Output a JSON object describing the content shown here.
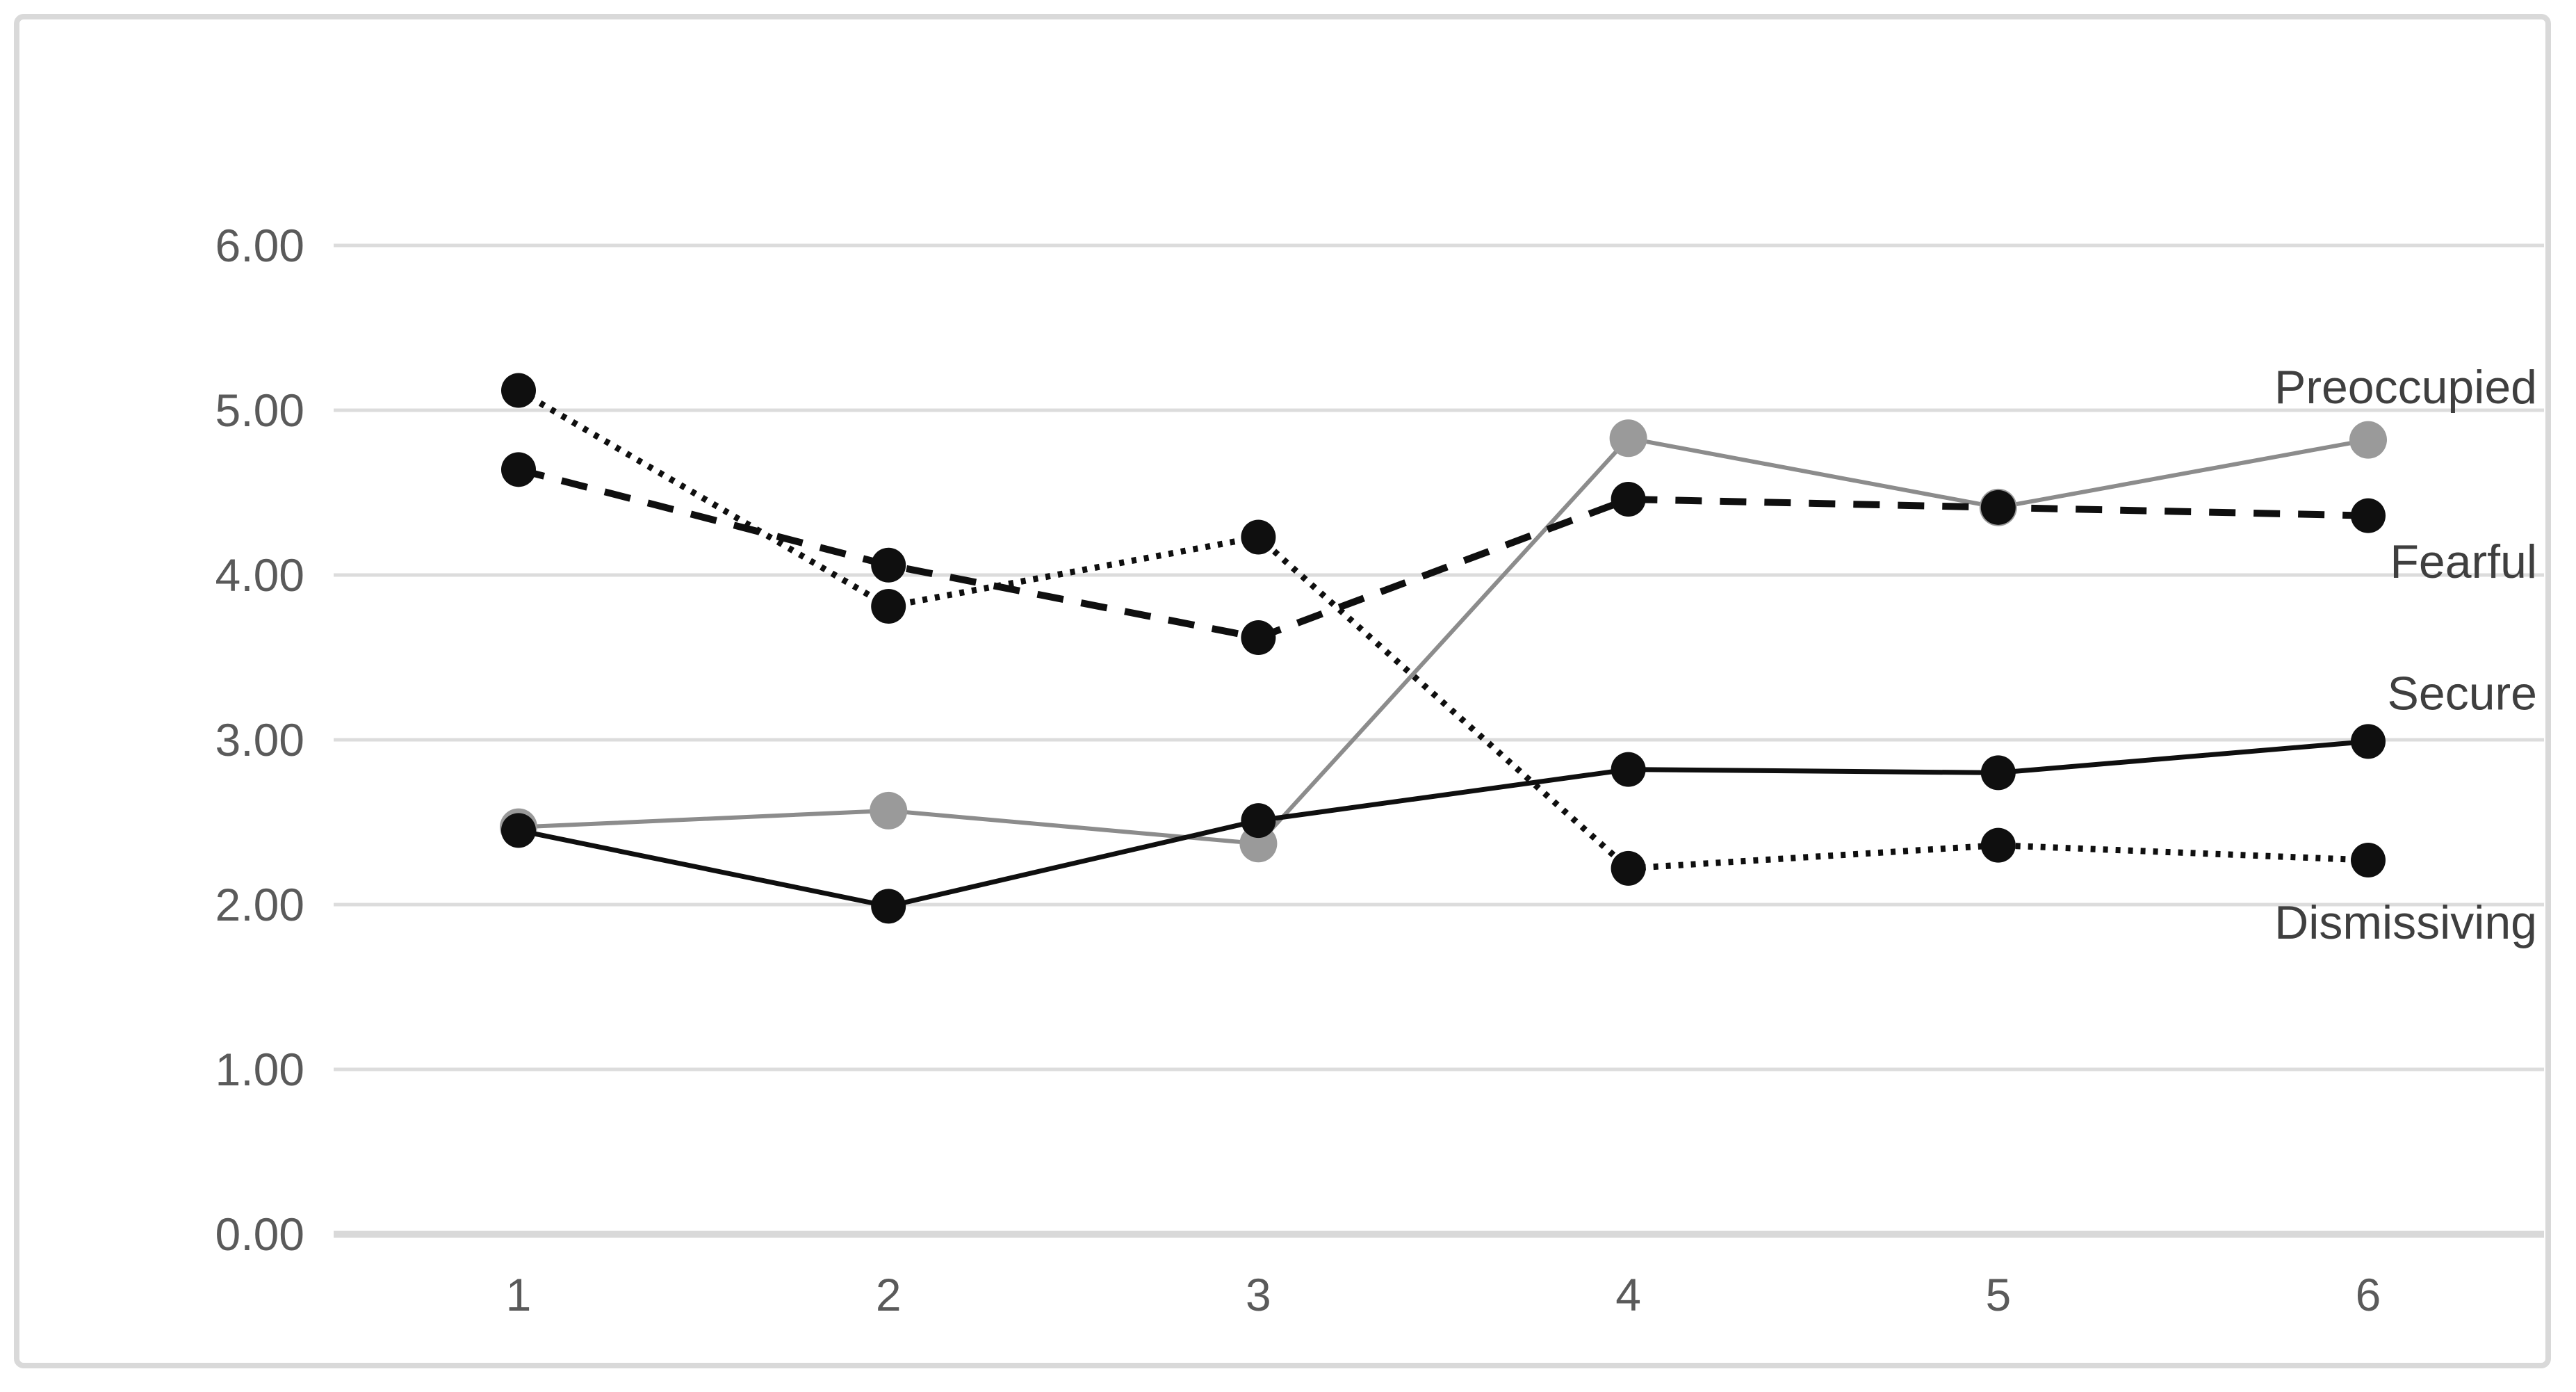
{
  "window": {
    "background_color": "#ffffff",
    "card_border_color": "#d9d9d9"
  },
  "chart_data": {
    "type": "line",
    "title": "",
    "xlabel": "",
    "ylabel": "",
    "x": [
      1,
      2,
      3,
      4,
      5,
      6
    ],
    "x_tick_labels": [
      "1",
      "2",
      "3",
      "4",
      "5",
      "6"
    ],
    "y_ticks": [
      {
        "value": 6,
        "label": "6.00"
      },
      {
        "value": 5,
        "label": "5.00"
      },
      {
        "value": 4,
        "label": "4.00"
      },
      {
        "value": 3,
        "label": "3.00"
      },
      {
        "value": 2,
        "label": "2.00"
      },
      {
        "value": 1,
        "label": "1.00"
      },
      {
        "value": 0,
        "label": "0.00"
      }
    ],
    "ylim": [
      0,
      6.8
    ],
    "grid": true,
    "grid_color": "#dcdcdc",
    "zero_line_color": "#d9d9d9",
    "tick_text_color": "#5a5a5a",
    "label_text_color": "#3f3f3f",
    "legend_position": "right-inline-labels",
    "draw_order": [
      "Preoccupied",
      "Dismissiving",
      "Fearful",
      "Secure"
    ],
    "series": [
      {
        "name": "Secure",
        "style": "solid",
        "color": "#0f0f0f",
        "marker_color": "#0f0f0f",
        "line_width": 7,
        "marker_radius": 25,
        "values": [
          2.45,
          1.99,
          2.51,
          2.82,
          2.8,
          2.99
        ],
        "label": {
          "text": "Secure",
          "y_value": 3.28
        }
      },
      {
        "name": "Fearful",
        "style": "dashed",
        "color": "#0f0f0f",
        "marker_color": "#0f0f0f",
        "line_width": 10,
        "marker_radius": 25,
        "values": [
          4.64,
          4.06,
          3.62,
          4.46,
          4.41,
          4.36
        ],
        "label": {
          "text": "Fearful",
          "y_value": 4.08
        }
      },
      {
        "name": "Preoccupied",
        "style": "solid",
        "color": "#8c8c8c",
        "marker_color": "#9a9a9a",
        "line_width": 6,
        "marker_radius": 27,
        "values": [
          2.47,
          2.57,
          2.37,
          4.83,
          4.41,
          4.82
        ],
        "label": {
          "text": "Preoccupied",
          "y_value": 5.14
        }
      },
      {
        "name": "Dismissiving",
        "style": "dotted",
        "color": "#0f0f0f",
        "marker_color": "#0f0f0f",
        "line_width": 9,
        "marker_radius": 25,
        "values": [
          5.12,
          3.81,
          4.23,
          2.22,
          2.36,
          2.27
        ],
        "label": {
          "text": "Dismissiving",
          "y_value": 1.89
        }
      }
    ]
  }
}
